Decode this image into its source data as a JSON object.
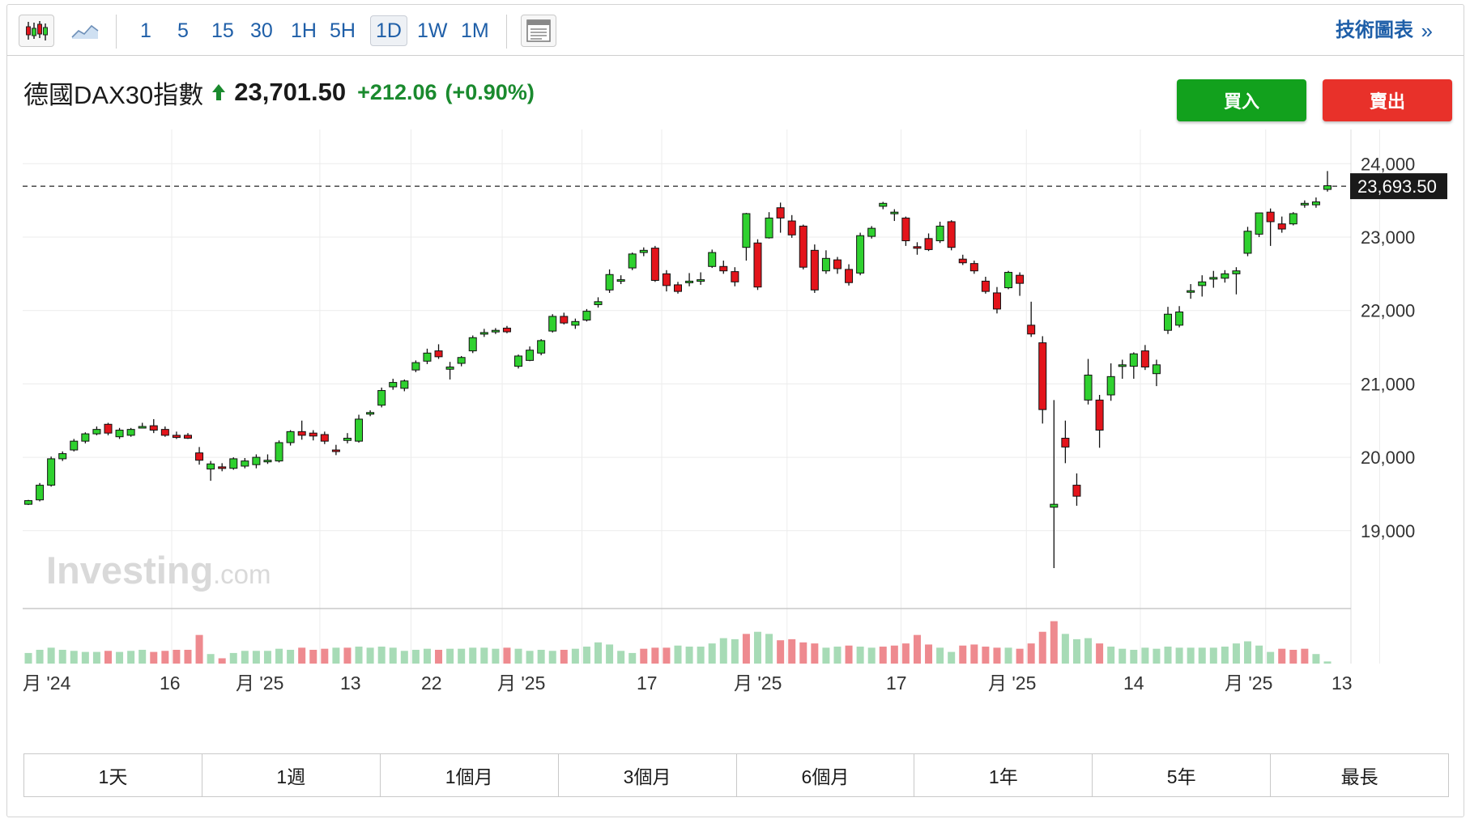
{
  "toolbar": {
    "chart_types": [
      {
        "name": "candlestick-chart-icon",
        "active": true
      },
      {
        "name": "area-chart-icon",
        "active": false
      }
    ],
    "timeframes": [
      {
        "label": "1",
        "active": false
      },
      {
        "label": "5",
        "active": false
      },
      {
        "label": "15",
        "active": false
      },
      {
        "label": "30",
        "active": false
      },
      {
        "label": "1H",
        "active": false
      },
      {
        "label": "5H",
        "active": false
      },
      {
        "label": "1D",
        "active": true
      },
      {
        "label": "1W",
        "active": false
      },
      {
        "label": "1M",
        "active": false
      }
    ],
    "layout_icon": "layout-icon",
    "technical_chart_label": "技術圖表",
    "technical_chart_arrow": "»"
  },
  "quote": {
    "name": "德國DAX30指數",
    "price": "23,701.50",
    "change": "+212.06",
    "change_pct": "(+0.90%)",
    "direction": "up"
  },
  "actions": {
    "buy_label": "買入",
    "sell_label": "賣出"
  },
  "colors": {
    "up": "#2fd12f",
    "down": "#e3141b",
    "vol_up": "#a7dbb6",
    "vol_down": "#ee8a8f",
    "grid": "#ececec",
    "brand_blue": "#1f5fa8",
    "change_green": "#1a8a2e",
    "buy": "#12a11d",
    "sell": "#e8312a"
  },
  "watermark": {
    "brand": "Investing",
    "suffix": ".com"
  },
  "chart_data": {
    "type": "candlestick",
    "instrument": "德國DAX30指數",
    "interval": "1D",
    "ylim": [
      17900,
      24200
    ],
    "y_ticks": [
      {
        "value": 24000,
        "label": "24,000"
      },
      {
        "value": 23000,
        "label": "23,000"
      },
      {
        "value": 22000,
        "label": "22,000"
      },
      {
        "value": 21000,
        "label": "21,000"
      },
      {
        "value": 20000,
        "label": "20,000"
      },
      {
        "value": 19000,
        "label": "19,000"
      }
    ],
    "x_ticks": [
      {
        "index": 0,
        "label": "月 '24"
      },
      {
        "index": 13,
        "label": "16"
      },
      {
        "index": 21,
        "label": "月 '25"
      },
      {
        "index": 29,
        "label": "13"
      },
      {
        "index": 36,
        "label": "22"
      },
      {
        "index": 43,
        "label": "月 '25"
      },
      {
        "index": 54,
        "label": "17"
      },
      {
        "index": 64,
        "label": "月 '25"
      },
      {
        "index": 75,
        "label": "17"
      },
      {
        "index": 85,
        "label": "月 '25"
      },
      {
        "index": 96,
        "label": "14"
      },
      {
        "index": 106,
        "label": "月 '25"
      },
      {
        "index": 114,
        "label": "13"
      }
    ],
    "last_price_label": "23,693.50",
    "last_price": 23693.5,
    "candles": [
      [
        19360,
        19420,
        19350,
        19410
      ],
      [
        19420,
        19650,
        19400,
        19620
      ],
      [
        19620,
        20010,
        19600,
        19980
      ],
      [
        19980,
        20080,
        19950,
        20050
      ],
      [
        20100,
        20250,
        20080,
        20220
      ],
      [
        20220,
        20340,
        20190,
        20320
      ],
      [
        20320,
        20420,
        20300,
        20380
      ],
      [
        20450,
        20470,
        20300,
        20330
      ],
      [
        20280,
        20400,
        20250,
        20370
      ],
      [
        20300,
        20400,
        20280,
        20380
      ],
      [
        20410,
        20470,
        20400,
        20420
      ],
      [
        20430,
        20520,
        20330,
        20370
      ],
      [
        20380,
        20420,
        20280,
        20300
      ],
      [
        20300,
        20350,
        20250,
        20270
      ],
      [
        20300,
        20330,
        20250,
        20260
      ],
      [
        20060,
        20140,
        19900,
        19960
      ],
      [
        19840,
        19950,
        19680,
        19910
      ],
      [
        19870,
        19920,
        19810,
        19850
      ],
      [
        19850,
        20000,
        19830,
        19980
      ],
      [
        19880,
        19990,
        19850,
        19950
      ],
      [
        19900,
        20040,
        19850,
        20000
      ],
      [
        19940,
        20040,
        19910,
        19960
      ],
      [
        19950,
        20230,
        19930,
        20200
      ],
      [
        20200,
        20370,
        20160,
        20350
      ],
      [
        20350,
        20500,
        20240,
        20300
      ],
      [
        20330,
        20370,
        20230,
        20290
      ],
      [
        20310,
        20350,
        20180,
        20220
      ],
      [
        20100,
        20170,
        20030,
        20080
      ],
      [
        20230,
        20330,
        20190,
        20260
      ],
      [
        20220,
        20580,
        20200,
        20520
      ],
      [
        20600,
        20640,
        20560,
        20610
      ],
      [
        20710,
        20950,
        20680,
        20910
      ],
      [
        20960,
        21070,
        20920,
        21020
      ],
      [
        20940,
        21060,
        20900,
        21040
      ],
      [
        21190,
        21320,
        21160,
        21290
      ],
      [
        21310,
        21480,
        21270,
        21420
      ],
      [
        21450,
        21540,
        21340,
        21370
      ],
      [
        21200,
        21300,
        21060,
        21230
      ],
      [
        21280,
        21380,
        21240,
        21360
      ],
      [
        21450,
        21660,
        21420,
        21630
      ],
      [
        21690,
        21750,
        21640,
        21700
      ],
      [
        21710,
        21760,
        21680,
        21730
      ],
      [
        21760,
        21790,
        21690,
        21710
      ],
      [
        21240,
        21400,
        21210,
        21380
      ],
      [
        21320,
        21510,
        21310,
        21460
      ],
      [
        21420,
        21610,
        21390,
        21590
      ],
      [
        21720,
        21950,
        21700,
        21920
      ],
      [
        21920,
        21970,
        21810,
        21830
      ],
      [
        21800,
        21890,
        21750,
        21850
      ],
      [
        21870,
        22020,
        21850,
        21990
      ],
      [
        22080,
        22180,
        22040,
        22120
      ],
      [
        22280,
        22560,
        22240,
        22490
      ],
      [
        22410,
        22480,
        22360,
        22420
      ],
      [
        22580,
        22790,
        22550,
        22770
      ],
      [
        22790,
        22860,
        22740,
        22820
      ],
      [
        22850,
        22880,
        22390,
        22410
      ],
      [
        22500,
        22550,
        22260,
        22340
      ],
      [
        22350,
        22390,
        22230,
        22260
      ],
      [
        22390,
        22510,
        22330,
        22400
      ],
      [
        22400,
        22520,
        22350,
        22420
      ],
      [
        22600,
        22830,
        22580,
        22790
      ],
      [
        22600,
        22680,
        22500,
        22540
      ],
      [
        22530,
        22590,
        22330,
        22390
      ],
      [
        22860,
        23330,
        22680,
        23320
      ],
      [
        22920,
        22970,
        22280,
        22320
      ],
      [
        22990,
        23340,
        22980,
        23260
      ],
      [
        23400,
        23470,
        23060,
        23260
      ],
      [
        23220,
        23300,
        22990,
        23030
      ],
      [
        23150,
        23170,
        22560,
        22590
      ],
      [
        22820,
        22900,
        22240,
        22280
      ],
      [
        22540,
        22820,
        22500,
        22710
      ],
      [
        22690,
        22730,
        22500,
        22570
      ],
      [
        22560,
        22630,
        22340,
        22380
      ],
      [
        22510,
        23060,
        22480,
        23020
      ],
      [
        23010,
        23150,
        22980,
        23120
      ],
      [
        23420,
        23480,
        23380,
        23460
      ],
      [
        23320,
        23380,
        23220,
        23340
      ],
      [
        23260,
        23280,
        22880,
        22950
      ],
      [
        22870,
        22930,
        22760,
        22850
      ],
      [
        22980,
        23050,
        22810,
        22830
      ],
      [
        22950,
        23210,
        22920,
        23150
      ],
      [
        23210,
        23230,
        22820,
        22860
      ],
      [
        22700,
        22760,
        22620,
        22650
      ],
      [
        22640,
        22680,
        22500,
        22540
      ],
      [
        22400,
        22460,
        22230,
        22260
      ],
      [
        22240,
        22320,
        21960,
        22020
      ],
      [
        22310,
        22540,
        22290,
        22520
      ],
      [
        22480,
        22520,
        22200,
        22370
      ],
      [
        21800,
        22120,
        21640,
        21680
      ],
      [
        21560,
        21650,
        20460,
        20650
      ],
      [
        19320,
        20780,
        18490,
        19360
      ],
      [
        20260,
        20500,
        19920,
        20140
      ],
      [
        19620,
        19780,
        19340,
        19470
      ],
      [
        20780,
        21340,
        20720,
        21120
      ],
      [
        20780,
        20850,
        20130,
        20370
      ],
      [
        20850,
        21280,
        20770,
        21100
      ],
      [
        21250,
        21330,
        21070,
        21260
      ],
      [
        21240,
        21430,
        21070,
        21410
      ],
      [
        21450,
        21530,
        21190,
        21230
      ],
      [
        21140,
        21330,
        20970,
        21260
      ],
      [
        21730,
        22050,
        21680,
        21950
      ],
      [
        21800,
        22060,
        21770,
        21980
      ],
      [
        22260,
        22360,
        22160,
        22270
      ],
      [
        22340,
        22480,
        22190,
        22390
      ],
      [
        22430,
        22540,
        22310,
        22450
      ],
      [
        22440,
        22550,
        22380,
        22500
      ],
      [
        22500,
        22590,
        22220,
        22540
      ],
      [
        22780,
        23140,
        22740,
        23080
      ],
      [
        23040,
        23330,
        23000,
        23330
      ],
      [
        23340,
        23390,
        22880,
        23210
      ],
      [
        23180,
        23280,
        23060,
        23110
      ],
      [
        23180,
        23340,
        23160,
        23320
      ],
      [
        23450,
        23500,
        23400,
        23460
      ],
      [
        23440,
        23540,
        23400,
        23480
      ],
      [
        23650,
        23900,
        23620,
        23700
      ]
    ],
    "volume": [
      [
        1.0,
        "u"
      ],
      [
        1.3,
        "u"
      ],
      [
        1.5,
        "u"
      ],
      [
        1.3,
        "u"
      ],
      [
        1.2,
        "u"
      ],
      [
        1.1,
        "u"
      ],
      [
        1.1,
        "u"
      ],
      [
        1.2,
        "d"
      ],
      [
        1.1,
        "u"
      ],
      [
        1.2,
        "u"
      ],
      [
        1.3,
        "u"
      ],
      [
        1.1,
        "d"
      ],
      [
        1.2,
        "d"
      ],
      [
        1.3,
        "d"
      ],
      [
        1.3,
        "d"
      ],
      [
        2.7,
        "d"
      ],
      [
        0.9,
        "u"
      ],
      [
        0.5,
        "d"
      ],
      [
        1.0,
        "u"
      ],
      [
        1.2,
        "u"
      ],
      [
        1.2,
        "u"
      ],
      [
        1.2,
        "u"
      ],
      [
        1.4,
        "u"
      ],
      [
        1.3,
        "u"
      ],
      [
        1.5,
        "d"
      ],
      [
        1.3,
        "d"
      ],
      [
        1.4,
        "d"
      ],
      [
        1.5,
        "u"
      ],
      [
        1.5,
        "d"
      ],
      [
        1.6,
        "u"
      ],
      [
        1.5,
        "u"
      ],
      [
        1.6,
        "u"
      ],
      [
        1.5,
        "u"
      ],
      [
        1.2,
        "u"
      ],
      [
        1.3,
        "u"
      ],
      [
        1.4,
        "u"
      ],
      [
        1.3,
        "d"
      ],
      [
        1.4,
        "u"
      ],
      [
        1.4,
        "u"
      ],
      [
        1.5,
        "u"
      ],
      [
        1.5,
        "u"
      ],
      [
        1.4,
        "u"
      ],
      [
        1.5,
        "d"
      ],
      [
        1.4,
        "u"
      ],
      [
        1.2,
        "u"
      ],
      [
        1.3,
        "u"
      ],
      [
        1.2,
        "u"
      ],
      [
        1.3,
        "d"
      ],
      [
        1.4,
        "u"
      ],
      [
        1.6,
        "u"
      ],
      [
        2.0,
        "u"
      ],
      [
        1.8,
        "u"
      ],
      [
        1.2,
        "u"
      ],
      [
        1.0,
        "u"
      ],
      [
        1.4,
        "d"
      ],
      [
        1.5,
        "d"
      ],
      [
        1.5,
        "d"
      ],
      [
        1.7,
        "u"
      ],
      [
        1.6,
        "u"
      ],
      [
        1.6,
        "u"
      ],
      [
        1.9,
        "u"
      ],
      [
        2.4,
        "u"
      ],
      [
        2.3,
        "u"
      ],
      [
        2.8,
        "d"
      ],
      [
        3.0,
        "u"
      ],
      [
        2.8,
        "u"
      ],
      [
        2.2,
        "d"
      ],
      [
        2.3,
        "d"
      ],
      [
        2.0,
        "d"
      ],
      [
        1.9,
        "d"
      ],
      [
        1.5,
        "u"
      ],
      [
        1.6,
        "u"
      ],
      [
        1.7,
        "d"
      ],
      [
        1.6,
        "u"
      ],
      [
        1.5,
        "u"
      ],
      [
        1.6,
        "d"
      ],
      [
        1.7,
        "d"
      ],
      [
        1.9,
        "d"
      ],
      [
        2.7,
        "d"
      ],
      [
        1.8,
        "d"
      ],
      [
        1.5,
        "u"
      ],
      [
        1.1,
        "u"
      ],
      [
        1.7,
        "d"
      ],
      [
        1.8,
        "d"
      ],
      [
        1.6,
        "d"
      ],
      [
        1.5,
        "d"
      ],
      [
        1.5,
        "u"
      ],
      [
        1.4,
        "d"
      ],
      [
        1.9,
        "d"
      ],
      [
        3.0,
        "d"
      ],
      [
        4.0,
        "d"
      ],
      [
        2.8,
        "u"
      ],
      [
        2.3,
        "u"
      ],
      [
        2.4,
        "u"
      ],
      [
        1.9,
        "d"
      ],
      [
        1.6,
        "u"
      ],
      [
        1.4,
        "u"
      ],
      [
        1.3,
        "u"
      ],
      [
        1.5,
        "u"
      ],
      [
        1.4,
        "u"
      ],
      [
        1.6,
        "u"
      ],
      [
        1.5,
        "u"
      ],
      [
        1.5,
        "u"
      ],
      [
        1.5,
        "u"
      ],
      [
        1.5,
        "u"
      ],
      [
        1.6,
        "u"
      ],
      [
        1.9,
        "u"
      ],
      [
        2.1,
        "u"
      ],
      [
        1.7,
        "u"
      ],
      [
        1.1,
        "u"
      ],
      [
        1.4,
        "d"
      ],
      [
        1.3,
        "d"
      ],
      [
        1.4,
        "d"
      ],
      [
        0.9,
        "u"
      ],
      [
        0.2,
        "u"
      ]
    ]
  },
  "ranges": [
    "1天",
    "1週",
    "1個月",
    "3個月",
    "6個月",
    "1年",
    "5年",
    "最長"
  ]
}
